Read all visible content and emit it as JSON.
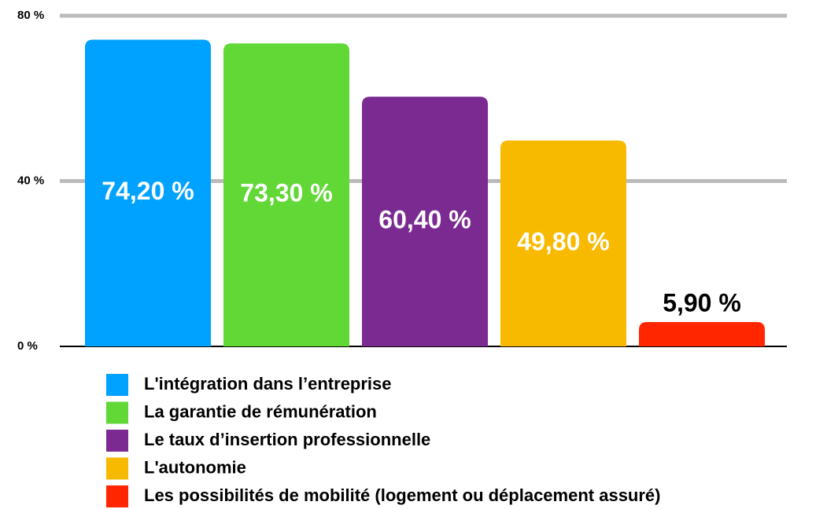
{
  "chart_data": {
    "type": "bar",
    "categories": [
      "L'intégration dans l’entreprise",
      "La garantie de rémunération",
      "Le taux d’insertion professionnelle",
      "L'autonomie",
      "Les possibilités de mobilité  (logement ou déplacement assuré)"
    ],
    "values": [
      74.2,
      73.3,
      60.4,
      49.8,
      5.9
    ],
    "value_labels": [
      "74,20 %",
      "73,30 %",
      "60,40 %",
      "49,80 %",
      "5,90 %"
    ],
    "colors": [
      "#00a2ff",
      "#61d836",
      "#7a2a90",
      "#f8ba00",
      "#ff2600"
    ],
    "ylim": [
      0,
      80
    ],
    "yticks": [
      {
        "value": 0,
        "label": "0 %"
      },
      {
        "value": 40,
        "label": "40 %"
      },
      {
        "value": 80,
        "label": "80 %"
      }
    ],
    "grid": true,
    "legend": "bottom"
  }
}
